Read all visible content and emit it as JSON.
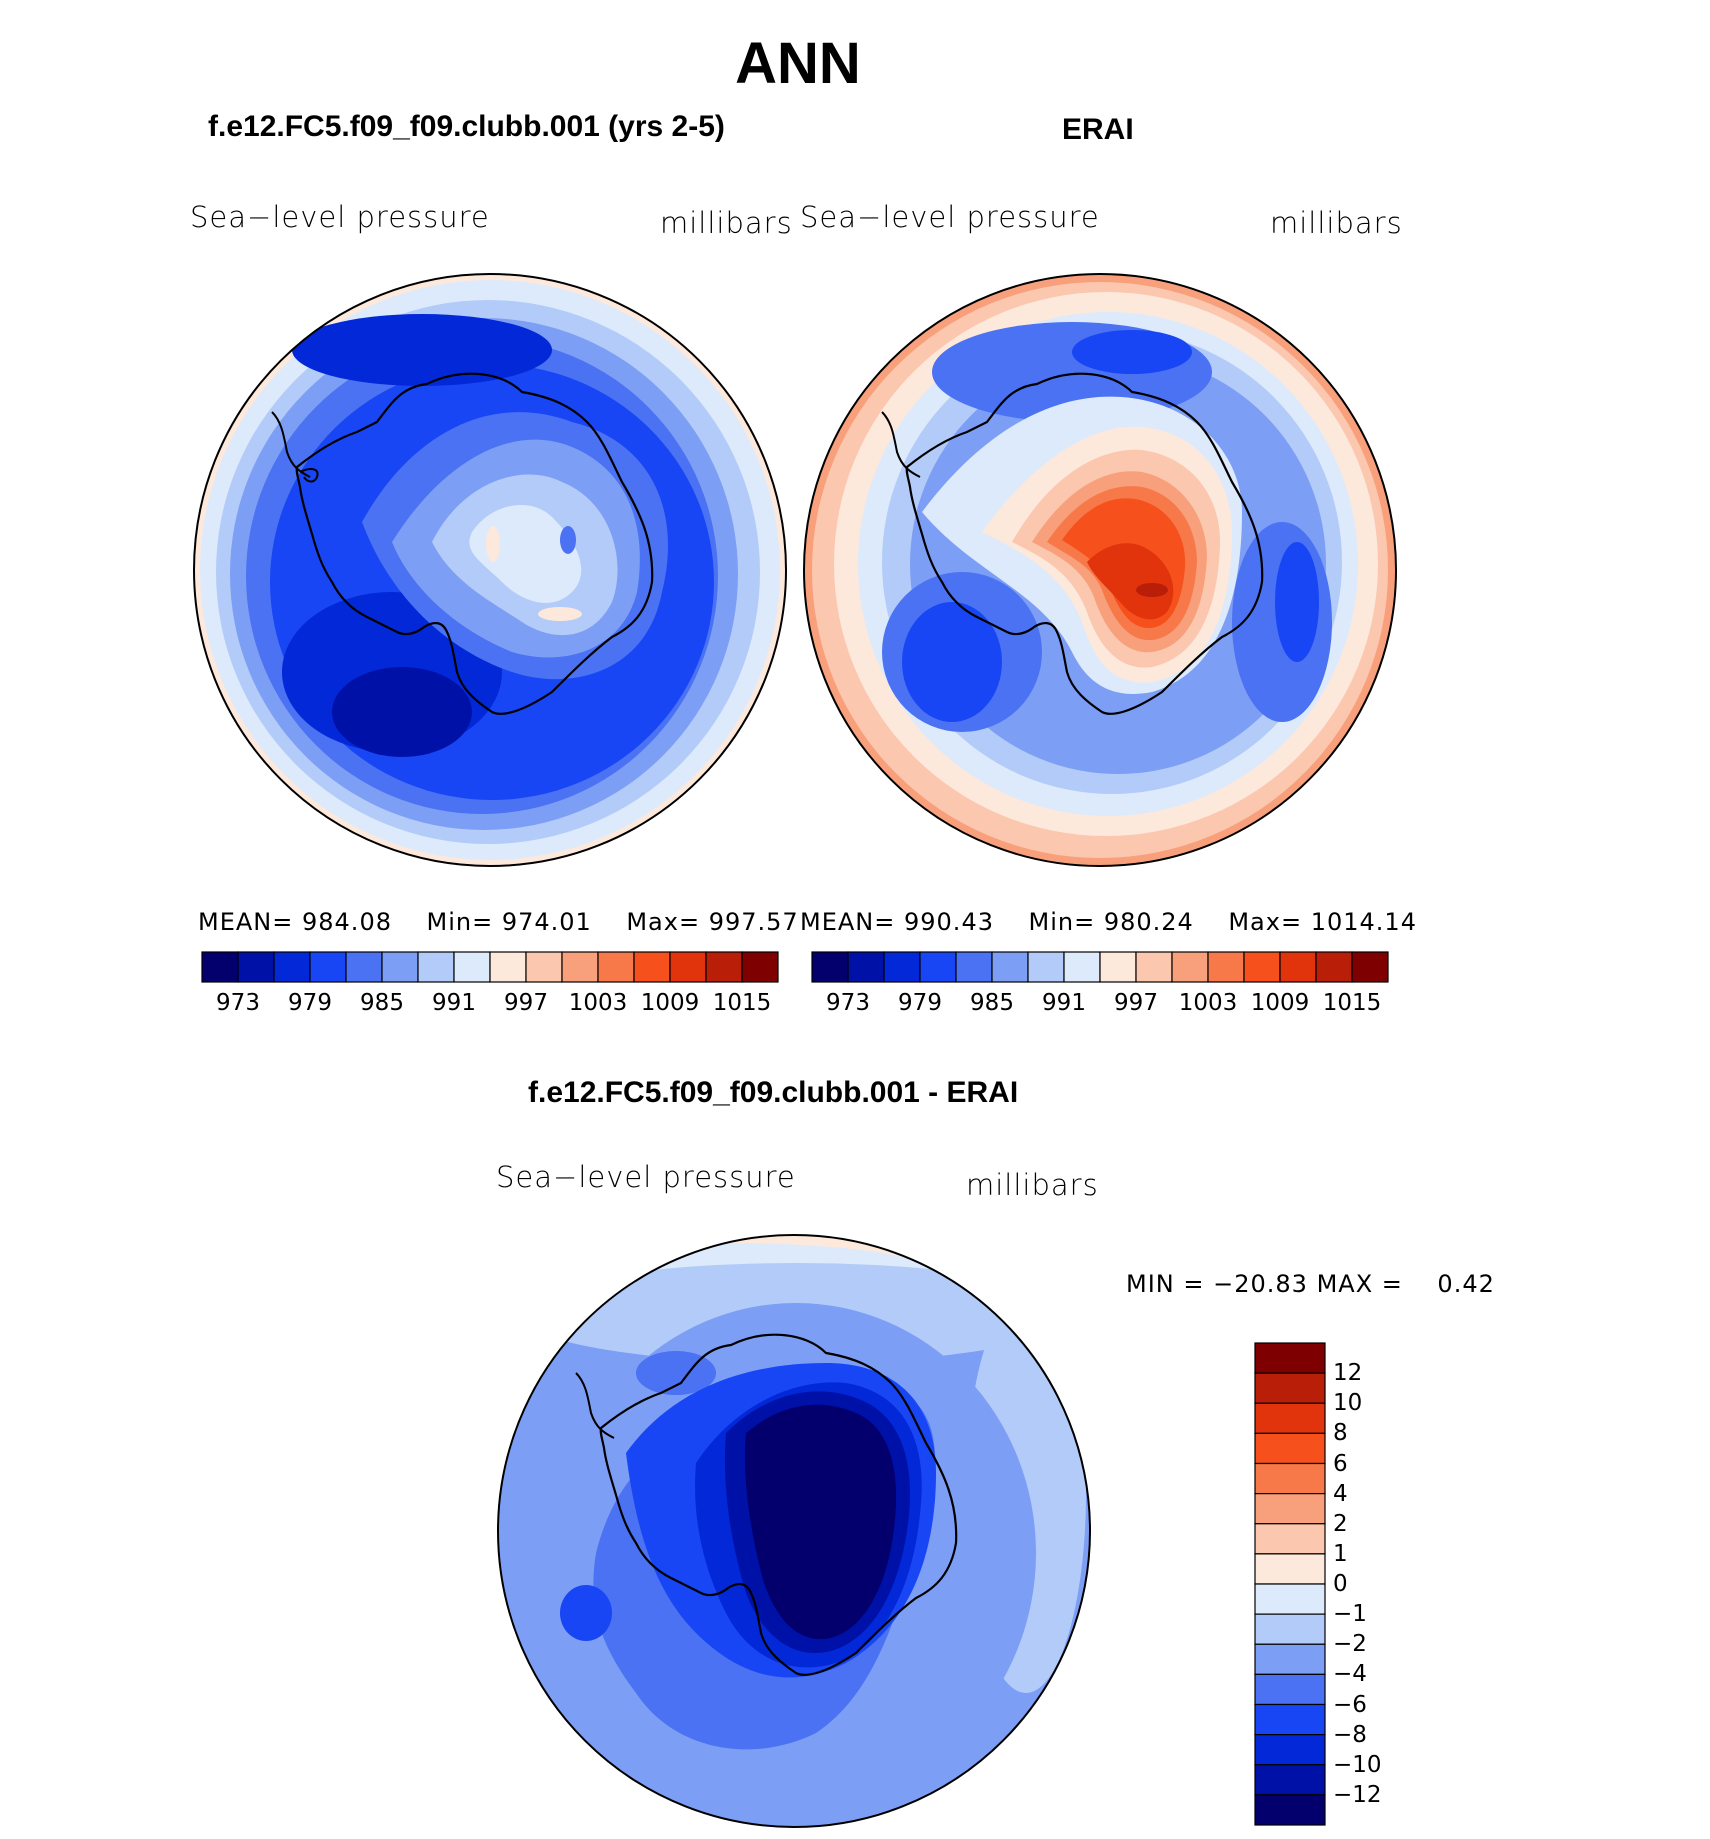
{
  "title": "ANN",
  "panels": [
    {
      "title": "f.e12.FC5.f09_f09.clubb.001 (yrs 2-5)",
      "variable": "Sea−level pressure",
      "units": "millibars",
      "stats": {
        "mean_label": "MEAN=",
        "mean": "984.08",
        "min_label": "Min=",
        "min": "974.01",
        "max_label": "Max=",
        "max": "997.57"
      }
    },
    {
      "title": "ERAI",
      "variable": "Sea−level pressure",
      "units": "millibars",
      "stats": {
        "mean_label": "MEAN=",
        "mean": "990.43",
        "min_label": "Min=",
        "min": "980.24",
        "max_label": "Max=",
        "max": "1014.14"
      }
    },
    {
      "title": "f.e12.FC5.f09_f09.clubb.001 - ERAI",
      "variable": "Sea−level pressure",
      "units": "millibars",
      "stats": {
        "min_label": "MIN =",
        "min": "−20.83",
        "max_label": "MAX =",
        "max": "0.42"
      }
    }
  ],
  "colorbar_field": {
    "tick_labels": [
      "973",
      "979",
      "985",
      "991",
      "997",
      "1003",
      "1009",
      "1015"
    ],
    "colors": [
      "#03006e",
      "#0011a8",
      "#0328d8",
      "#1846f4",
      "#4a72f2",
      "#7d9ef5",
      "#b3cbf8",
      "#ddeafb",
      "#fde8dc",
      "#fbc7ae",
      "#f8a07c",
      "#f7794a",
      "#f6501d",
      "#e1330c",
      "#b81e08",
      "#7e0000"
    ]
  },
  "colorbar_diff": {
    "tick_labels": [
      "12",
      "10",
      "8",
      "6",
      "4",
      "2",
      "1",
      "0",
      "−1",
      "−2",
      "−4",
      "−6",
      "−8",
      "−10",
      "−12"
    ],
    "colors": [
      "#7e0000",
      "#b81e08",
      "#e1330c",
      "#f6501d",
      "#f7794a",
      "#f8a07c",
      "#fbc7ae",
      "#fde8dc",
      "#ddeafb",
      "#b3cbf8",
      "#7d9ef5",
      "#4a72f2",
      "#1846f4",
      "#0328d8",
      "#0011a8",
      "#03006e"
    ]
  }
}
